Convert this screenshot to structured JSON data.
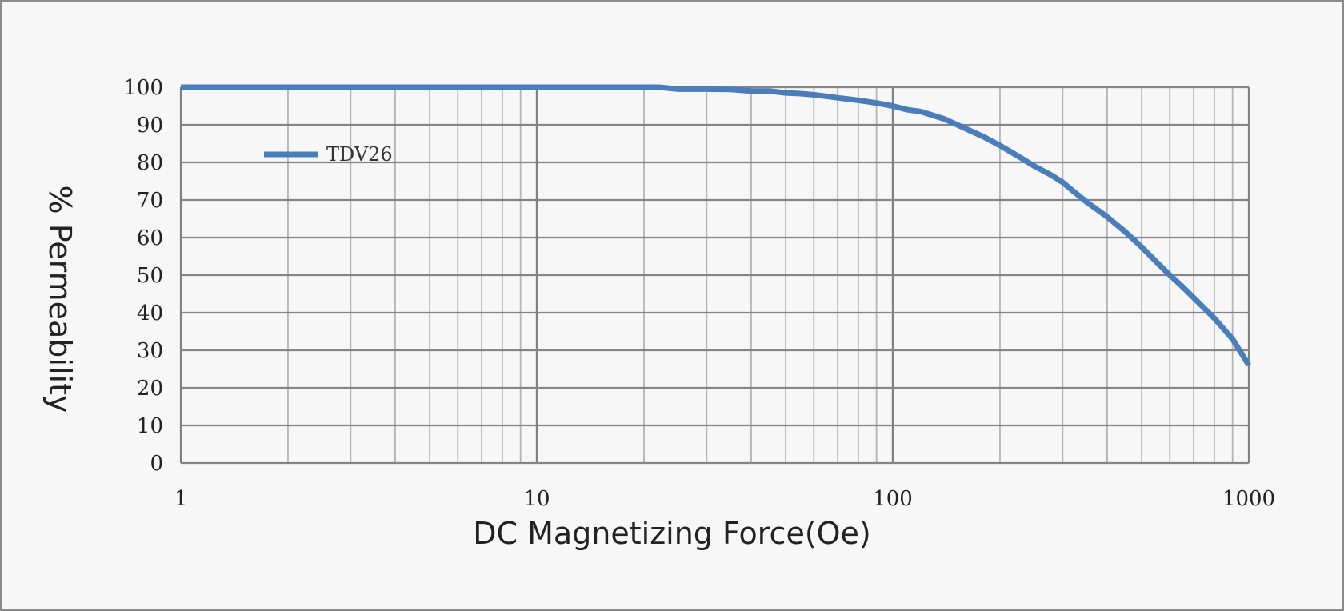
{
  "chart_data": {
    "type": "line",
    "xscale": "log",
    "xlim": [
      1,
      1000
    ],
    "ylim": [
      0,
      100
    ],
    "xlabel": "DC Magnetizing Force(Oe)",
    "ylabel": "% Permeability",
    "x_ticks": [
      "1",
      "10",
      "100",
      "1000"
    ],
    "y_ticks": [
      "0",
      "10",
      "20",
      "30",
      "40",
      "50",
      "60",
      "70",
      "80",
      "90",
      "100"
    ],
    "grid": true,
    "legend_position": "top-left",
    "series": [
      {
        "name": "TDV26",
        "color": "#4a7ebb",
        "x": [
          1,
          5,
          10,
          20,
          22,
          25,
          30,
          35,
          40,
          45,
          50,
          55,
          60,
          70,
          80,
          90,
          100,
          110,
          120,
          140,
          160,
          180,
          200,
          220,
          250,
          280,
          300,
          320,
          350,
          400,
          450,
          500,
          550,
          600,
          650,
          700,
          800,
          900,
          1000
        ],
        "y": [
          100,
          100,
          100,
          100,
          100,
          99.5,
          99.5,
          99.4,
          99,
          99,
          98.5,
          98.3,
          98,
          97.2,
          96.5,
          95.8,
          95,
          94,
          93.5,
          91.5,
          89,
          86.8,
          84.5,
          82.2,
          79,
          76.5,
          74.7,
          72.5,
          69.5,
          65.5,
          61.5,
          57.5,
          53.5,
          50,
          47,
          44,
          38.5,
          33,
          26
        ]
      }
    ]
  }
}
